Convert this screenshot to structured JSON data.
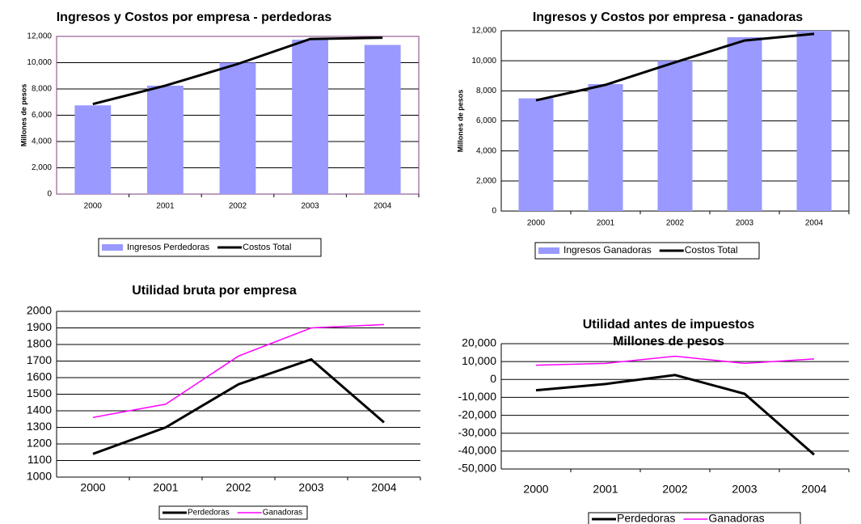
{
  "chart_data": [
    {
      "type": "combo",
      "title": "Ingresos y Costos por empresa -  perdedoras",
      "y_label": "Millones de pesos",
      "categories": [
        "2000",
        "2001",
        "2002",
        "2003",
        "2004"
      ],
      "series": [
        {
          "name": "Ingresos Perdedoras",
          "type": "bar",
          "color": "#9999ff",
          "values": [
            6750,
            8250,
            10000,
            11750,
            11350
          ]
        },
        {
          "name": "Costos Total",
          "type": "line",
          "color": "#000000",
          "values": [
            6850,
            8250,
            9900,
            11800,
            11900
          ]
        }
      ],
      "ylim": [
        0,
        12000
      ],
      "yticks": [
        0,
        {
          "value": 2000,
          "label": "2,000"
        },
        {
          "value": 4000,
          "label": "4,000"
        },
        {
          "value": 6000,
          "label": "6,000"
        },
        {
          "value": 8000,
          "label": "8,000"
        },
        {
          "value": 10000,
          "label": "10,000"
        },
        {
          "value": 12000,
          "label": "12,000"
        }
      ],
      "grid": true
    },
    {
      "type": "combo",
      "title": "Ingresos y Costos por empresa - ganadoras",
      "y_label": "Millones de pesos",
      "categories": [
        "2000",
        "2001",
        "2002",
        "2003",
        "2004"
      ],
      "series": [
        {
          "name": "Ingresos Ganadoras",
          "type": "bar",
          "color": "#9999ff",
          "values": [
            7500,
            8450,
            10000,
            11570,
            12000
          ]
        },
        {
          "name": "Costos Total",
          "type": "line",
          "color": "#000000",
          "values": [
            7370,
            8400,
            9900,
            11350,
            11790
          ]
        }
      ],
      "ylim": [
        0,
        12000
      ],
      "yticks": [
        0,
        {
          "value": 2000,
          "label": "2,000"
        },
        {
          "value": 4000,
          "label": "4,000"
        },
        {
          "value": 6000,
          "label": "6,000"
        },
        {
          "value": 8000,
          "label": "8,000"
        },
        {
          "value": 10000,
          "label": "10,000"
        },
        {
          "value": 12000,
          "label": "12,000"
        }
      ],
      "grid": true
    },
    {
      "type": "line",
      "title": "Utilidad bruta por empresa",
      "categories": [
        "2000",
        "2001",
        "2002",
        "2003",
        "2004"
      ],
      "series": [
        {
          "name": "Perdedoras",
          "color": "#000000",
          "values": [
            1140,
            1300,
            1560,
            1710,
            1330
          ]
        },
        {
          "name": "Ganadoras",
          "color": "#ff00ff",
          "values": [
            1360,
            1440,
            1730,
            1900,
            1920
          ]
        }
      ],
      "ylim": [
        1000,
        2000
      ],
      "yticks": [
        1000,
        1100,
        1200,
        1300,
        1400,
        1500,
        1600,
        1700,
        1800,
        1900,
        2000
      ],
      "grid": true
    },
    {
      "type": "line",
      "title": "Utilidad antes de impuestos",
      "subtitle": "Millones de pesos",
      "categories": [
        "2000",
        "2001",
        "2002",
        "2003",
        "2004"
      ],
      "series": [
        {
          "name": "Perdedoras",
          "color": "#000000",
          "values": [
            -6000,
            -2500,
            2500,
            -8000,
            -42000
          ]
        },
        {
          "name": "Ganadoras",
          "color": "#ff00ff",
          "values": [
            8000,
            9000,
            13000,
            9000,
            11500
          ]
        }
      ],
      "ylim": [
        -50000,
        20000
      ],
      "yticks": [
        {
          "value": -50000,
          "label": "-50,000"
        },
        {
          "value": -40000,
          "label": "-40,000"
        },
        {
          "value": -30000,
          "label": "-30,000"
        },
        {
          "value": -20000,
          "label": "-20,000"
        },
        {
          "value": -10000,
          "label": "-10,000"
        },
        0,
        {
          "value": 10000,
          "label": "10,000"
        },
        {
          "value": 20000,
          "label": "20,000"
        }
      ],
      "grid": true
    }
  ]
}
